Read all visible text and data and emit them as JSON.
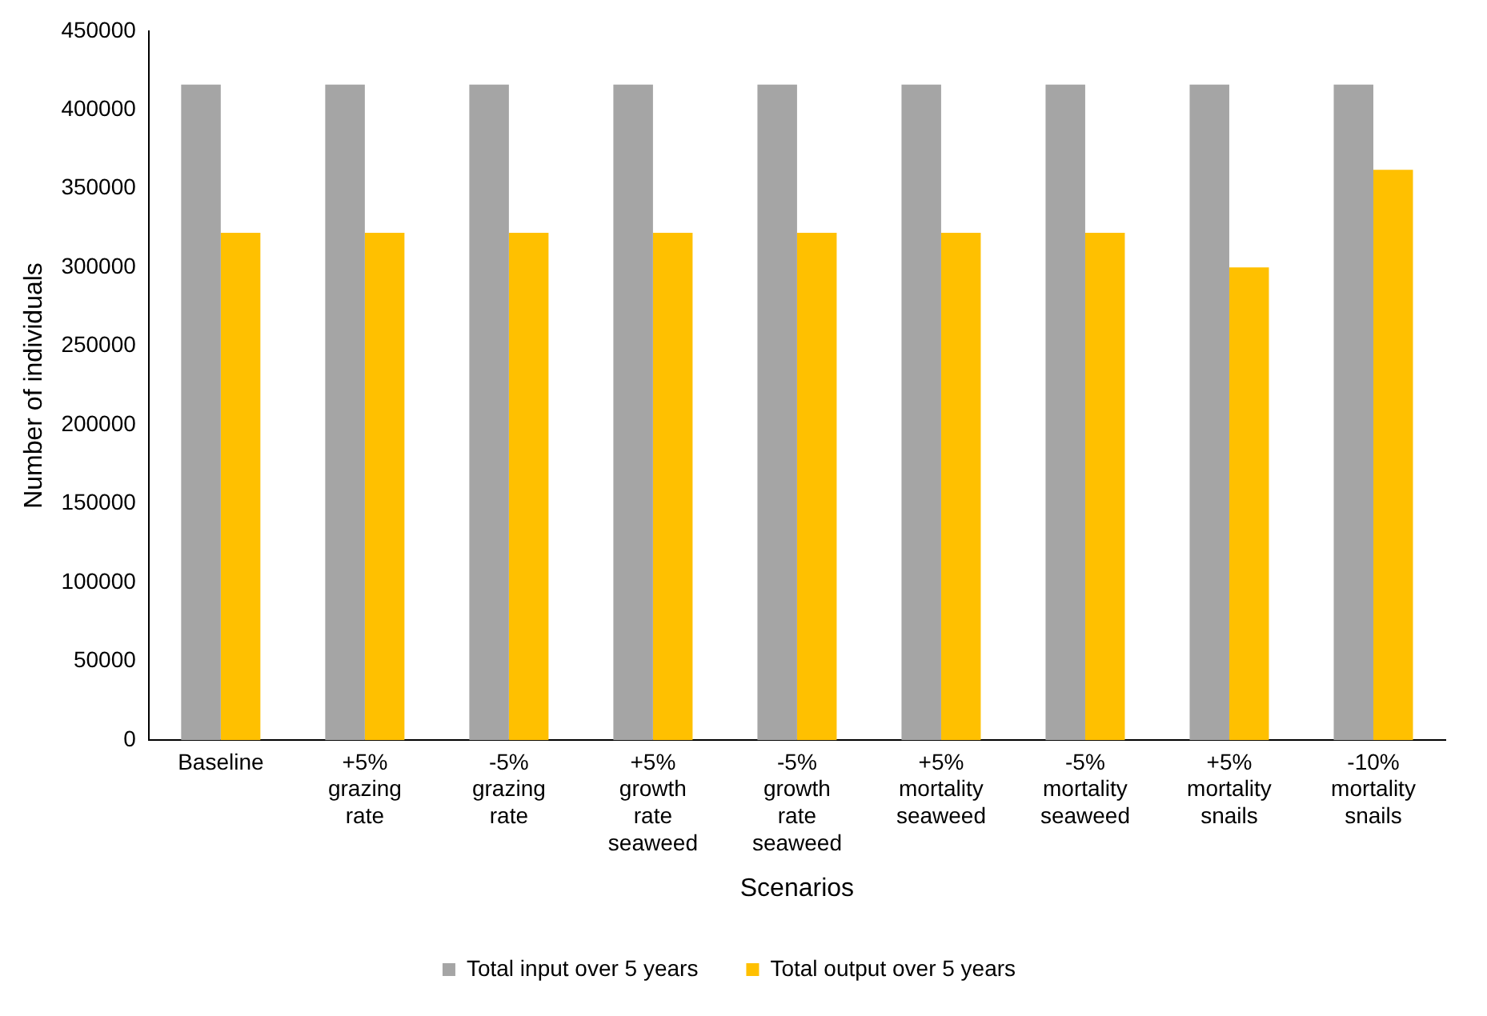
{
  "chart_data": {
    "type": "bar",
    "xlabel": "Scenarios",
    "ylabel": "Number of individuals",
    "categories": [
      "Baseline",
      "+5% grazing rate",
      "-5% grazing rate",
      "+5% growth rate seaweed",
      "-5% growth rate seaweed",
      "+5% mortality seaweed",
      "-5% mortality seaweed",
      "+5% mortality snails",
      "-10% mortality snails"
    ],
    "series": [
      {
        "name": "Total input over 5 years",
        "color": "#a5a5a5",
        "values": [
          416000,
          416000,
          416000,
          416000,
          416000,
          416000,
          416000,
          416000,
          416000
        ]
      },
      {
        "name": "Total output over 5 years",
        "color": "#ffc000",
        "values": [
          322000,
          322000,
          322000,
          322000,
          322000,
          322000,
          322000,
          300000,
          362000
        ]
      }
    ],
    "ylim": [
      0,
      450000
    ],
    "yticks": [
      0,
      50000,
      100000,
      150000,
      200000,
      250000,
      300000,
      350000,
      400000,
      450000
    ],
    "grid": false,
    "legend": "bottom"
  }
}
